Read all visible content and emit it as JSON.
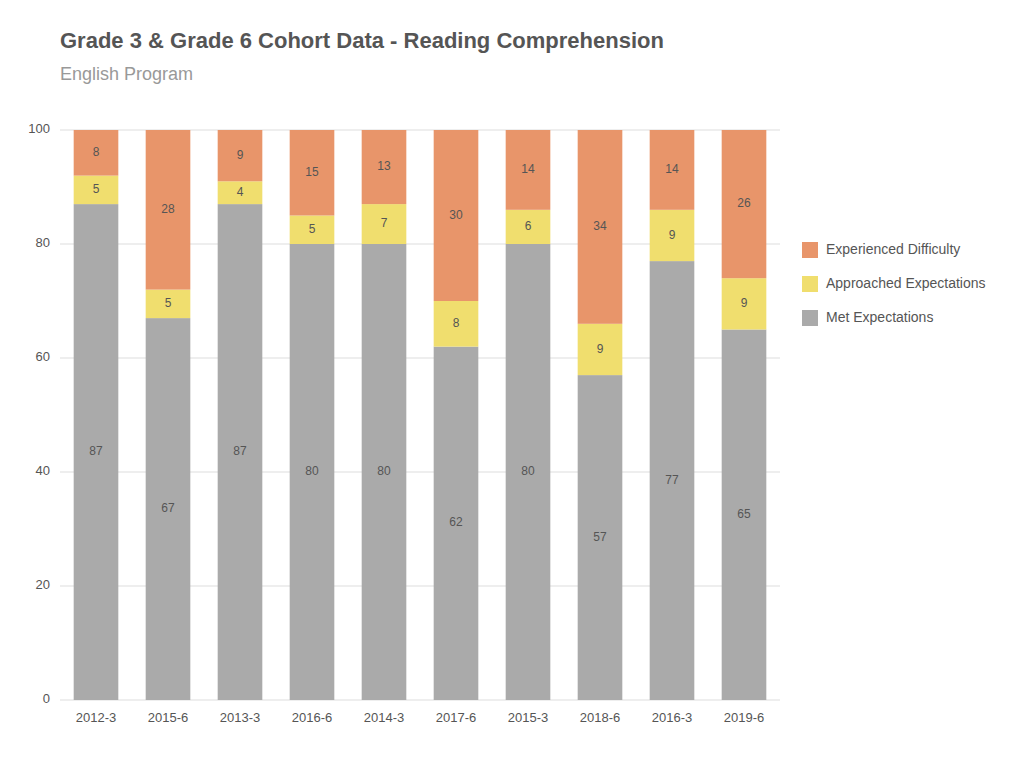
{
  "chart_data": {
    "type": "bar",
    "stacked": true,
    "title": "Grade 3 & Grade 6 Cohort Data - Reading Comprehension",
    "subtitle": "English Program",
    "categories": [
      "2012-3",
      "2015-6",
      "2013-3",
      "2016-6",
      "2014-3",
      "2017-6",
      "2015-3",
      "2018-6",
      "2016-3",
      "2019-6"
    ],
    "series": [
      {
        "name": "Met Expectations",
        "color": "#aaaaaa",
        "values": [
          87,
          67,
          87,
          80,
          80,
          62,
          80,
          57,
          77,
          65
        ]
      },
      {
        "name": "Approached Expectations",
        "color": "#f0de6e",
        "values": [
          5,
          5,
          4,
          5,
          7,
          8,
          6,
          9,
          9,
          9
        ]
      },
      {
        "name": "Experienced Difficulty",
        "color": "#e8956a",
        "values": [
          8,
          28,
          9,
          15,
          13,
          30,
          14,
          34,
          14,
          26
        ]
      }
    ],
    "ylim": [
      0,
      100
    ],
    "yticks": [
      0,
      20,
      40,
      60,
      80,
      100
    ],
    "grid": true,
    "legend": "right",
    "data_labels": true
  }
}
